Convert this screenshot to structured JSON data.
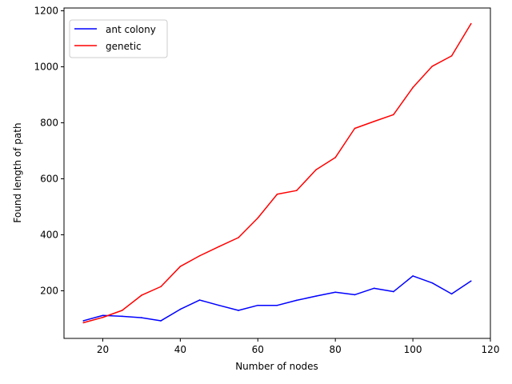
{
  "chart_data": {
    "type": "line",
    "title": "",
    "xlabel": "Number of nodes",
    "ylabel": "Found length of path",
    "xlim": [
      10,
      120
    ],
    "ylim": [
      30,
      1210
    ],
    "xticks": [
      20,
      40,
      60,
      80,
      100,
      120
    ],
    "yticks": [
      200,
      400,
      600,
      800,
      1000,
      1200
    ],
    "grid": false,
    "legend_position": "top-left",
    "x": [
      15,
      20,
      25,
      30,
      35,
      40,
      45,
      50,
      55,
      60,
      65,
      70,
      75,
      80,
      85,
      90,
      95,
      100,
      105,
      110,
      115
    ],
    "series": [
      {
        "name": "ant colony",
        "color": "#0000ff",
        "values": [
          93,
          112,
          109,
          104,
          93,
          134,
          167,
          148,
          130,
          148,
          148,
          166,
          181,
          195,
          186,
          209,
          197,
          253,
          228,
          189,
          235
        ]
      },
      {
        "name": "genetic",
        "color": "#ff0000",
        "values": [
          86,
          105,
          130,
          184,
          215,
          287,
          325,
          358,
          390,
          460,
          545,
          558,
          632,
          676,
          780,
          805,
          829,
          926,
          1002,
          1039,
          1154
        ]
      }
    ]
  }
}
